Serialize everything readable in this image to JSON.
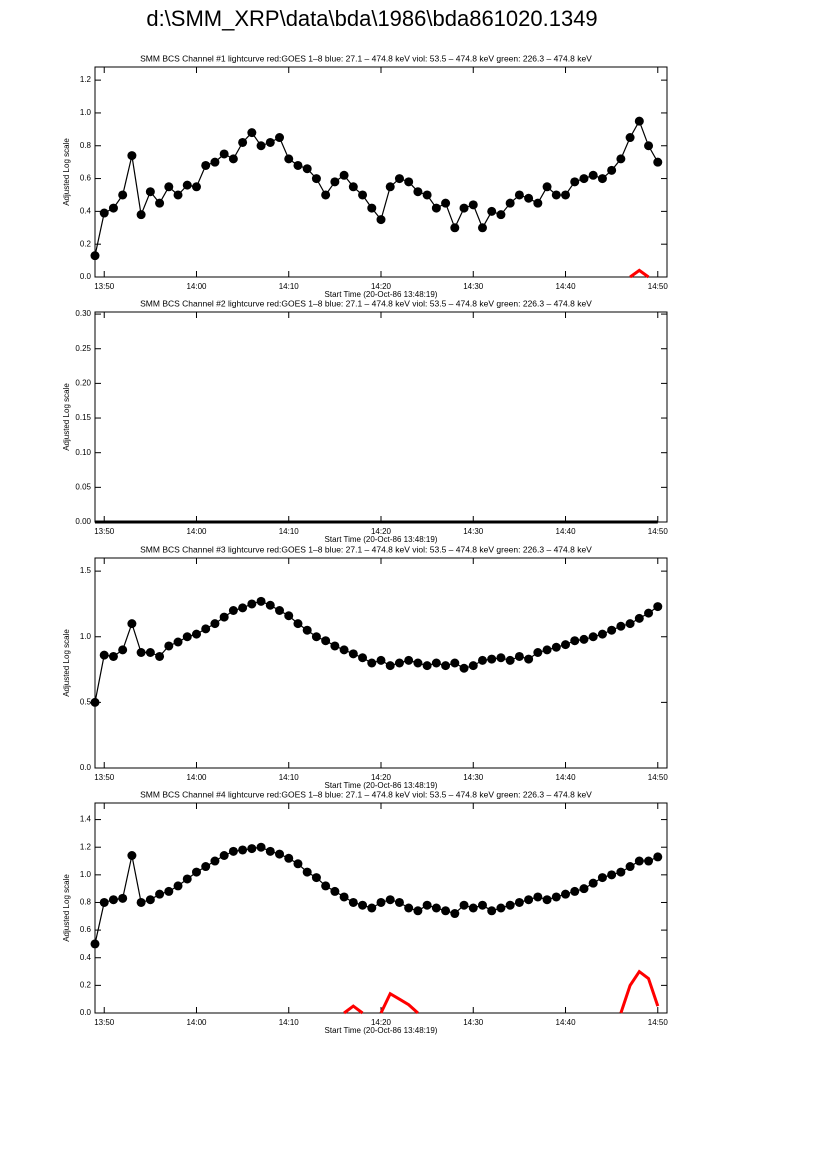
{
  "header": {
    "title": "d:\\SMM_XRP\\data\\bda\\1986\\bda861020.1349"
  },
  "chart_data": [
    {
      "type": "line",
      "title": "SMM BCS Channel #1 lightcurve  red:GOES 1–8  blue: 27.1 – 474.8 keV  viol: 53.5 – 474.8 keV  green: 226.3 – 474.8 keV",
      "x_label": "Start Time (20-Oct-86 13:48:19)",
      "y_label": "Adjusted Log scale",
      "x": [
        "13:49",
        "13:50",
        "13:51",
        "13:52",
        "13:53",
        "13:54",
        "13:55",
        "13:56",
        "13:57",
        "13:58",
        "13:59",
        "14:00",
        "14:01",
        "14:02",
        "14:03",
        "14:04",
        "14:05",
        "14:06",
        "14:07",
        "14:08",
        "14:09",
        "14:10",
        "14:11",
        "14:12",
        "14:13",
        "14:14",
        "14:15",
        "14:16",
        "14:17",
        "14:18",
        "14:19",
        "14:20",
        "14:21",
        "14:22",
        "14:23",
        "14:24",
        "14:25",
        "14:26",
        "14:27",
        "14:28",
        "14:29",
        "14:30",
        "14:31",
        "14:32",
        "14:33",
        "14:34",
        "14:35",
        "14:36",
        "14:37",
        "14:38",
        "14:39",
        "14:40",
        "14:41",
        "14:42",
        "14:43",
        "14:44",
        "14:45",
        "14:46",
        "14:47",
        "14:48",
        "14:49",
        "14:50"
      ],
      "series": [
        {
          "color": "#000000",
          "markers": true,
          "values": [
            0.13,
            0.39,
            0.42,
            0.5,
            0.74,
            0.38,
            0.52,
            0.45,
            0.55,
            0.5,
            0.56,
            0.55,
            0.68,
            0.7,
            0.75,
            0.72,
            0.82,
            0.88,
            0.8,
            0.82,
            0.85,
            0.72,
            0.68,
            0.66,
            0.6,
            0.5,
            0.58,
            0.62,
            0.55,
            0.5,
            0.42,
            0.35,
            0.55,
            0.6,
            0.58,
            0.52,
            0.5,
            0.42,
            0.45,
            0.3,
            0.42,
            0.44,
            0.3,
            0.4,
            0.38,
            0.45,
            0.5,
            0.48,
            0.45,
            0.55,
            0.5,
            0.5,
            0.58,
            0.6,
            0.62,
            0.6,
            0.65,
            0.72,
            0.85,
            0.95,
            0.8,
            0.7
          ]
        },
        {
          "color": "#ff0000",
          "markers": false,
          "values": [
            null,
            null,
            null,
            null,
            null,
            null,
            null,
            null,
            null,
            null,
            null,
            null,
            null,
            null,
            null,
            null,
            null,
            null,
            null,
            null,
            null,
            null,
            null,
            null,
            null,
            null,
            null,
            null,
            null,
            null,
            null,
            null,
            null,
            null,
            null,
            null,
            null,
            null,
            null,
            null,
            null,
            null,
            null,
            null,
            null,
            null,
            null,
            null,
            null,
            null,
            null,
            null,
            null,
            null,
            null,
            null,
            null,
            null,
            0,
            0.04,
            0,
            null
          ]
        }
      ],
      "xlim": [
        "13:49",
        "14:51"
      ],
      "xticks": [
        "13:50",
        "14:00",
        "14:10",
        "14:20",
        "14:30",
        "14:40",
        "14:50"
      ],
      "ylim": [
        0,
        1.28
      ],
      "yticks": [
        {
          "value": 0,
          "label": "0.0"
        },
        {
          "value": 0.2,
          "label": "0.2"
        },
        {
          "value": 0.4,
          "label": "0.4"
        },
        {
          "value": 0.6,
          "label": "0.6"
        },
        {
          "value": 0.8,
          "label": "0.8"
        },
        {
          "value": 1,
          "label": "1.0"
        },
        {
          "value": 1.2,
          "label": "1.2"
        }
      ]
    },
    {
      "type": "line",
      "title": "SMM BCS Channel #2 lightcurve  red:GOES 1–8  blue: 27.1 – 474.8 keV  viol: 53.5 – 474.8 keV  green: 226.3 – 474.8 keV",
      "x_label": "Start Time (20-Oct-86 13:48:19)",
      "y_label": "Adjusted Log scale",
      "x": [
        "13:49",
        "13:50",
        "13:51",
        "13:52",
        "13:53",
        "13:54",
        "13:55",
        "13:56",
        "13:57",
        "13:58",
        "13:59",
        "14:00",
        "14:01",
        "14:02",
        "14:03",
        "14:04",
        "14:05",
        "14:06",
        "14:07",
        "14:08",
        "14:09",
        "14:10",
        "14:11",
        "14:12",
        "14:13",
        "14:14",
        "14:15",
        "14:16",
        "14:17",
        "14:18",
        "14:19",
        "14:20",
        "14:21",
        "14:22",
        "14:23",
        "14:24",
        "14:25",
        "14:26",
        "14:27",
        "14:28",
        "14:29",
        "14:30",
        "14:31",
        "14:32",
        "14:33",
        "14:34",
        "14:35",
        "14:36",
        "14:37",
        "14:38",
        "14:39",
        "14:40",
        "14:41",
        "14:42",
        "14:43",
        "14:44",
        "14:45",
        "14:46",
        "14:47",
        "14:48",
        "14:49",
        "14:50"
      ],
      "series": [
        {
          "color": "#000000",
          "markers": false,
          "values": [
            0,
            0,
            0,
            0,
            0,
            0,
            0,
            0,
            0,
            0,
            0,
            0,
            0,
            0,
            0,
            0,
            0,
            0,
            0,
            0,
            0,
            0,
            0,
            0,
            0,
            0,
            0,
            0,
            0,
            0,
            0,
            0,
            0,
            0,
            0,
            0,
            0,
            0,
            0,
            0,
            0,
            0,
            0,
            0,
            0,
            0,
            0,
            0,
            0,
            0,
            0,
            0,
            0,
            0,
            0,
            0,
            0,
            0,
            0,
            0,
            0,
            0
          ]
        }
      ],
      "xlim": [
        "13:49",
        "14:51"
      ],
      "xticks": [
        "13:50",
        "14:00",
        "14:10",
        "14:20",
        "14:30",
        "14:40",
        "14:50"
      ],
      "ylim": [
        0,
        0.303
      ],
      "yticks": [
        {
          "value": 0,
          "label": "0.00"
        },
        {
          "value": 0.05,
          "label": "0.05"
        },
        {
          "value": 0.1,
          "label": "0.10"
        },
        {
          "value": 0.15,
          "label": "0.15"
        },
        {
          "value": 0.2,
          "label": "0.20"
        },
        {
          "value": 0.25,
          "label": "0.25"
        },
        {
          "value": 0.3,
          "label": "0.30"
        }
      ]
    },
    {
      "type": "line",
      "title": "SMM BCS Channel #3 lightcurve  red:GOES 1–8  blue: 27.1 – 474.8 keV  viol: 53.5 – 474.8 keV  green: 226.3 – 474.8 keV",
      "x_label": "Start Time (20-Oct-86 13:48:19)",
      "y_label": "Adjusted Log scale",
      "x": [
        "13:49",
        "13:50",
        "13:51",
        "13:52",
        "13:53",
        "13:54",
        "13:55",
        "13:56",
        "13:57",
        "13:58",
        "13:59",
        "14:00",
        "14:01",
        "14:02",
        "14:03",
        "14:04",
        "14:05",
        "14:06",
        "14:07",
        "14:08",
        "14:09",
        "14:10",
        "14:11",
        "14:12",
        "14:13",
        "14:14",
        "14:15",
        "14:16",
        "14:17",
        "14:18",
        "14:19",
        "14:20",
        "14:21",
        "14:22",
        "14:23",
        "14:24",
        "14:25",
        "14:26",
        "14:27",
        "14:28",
        "14:29",
        "14:30",
        "14:31",
        "14:32",
        "14:33",
        "14:34",
        "14:35",
        "14:36",
        "14:37",
        "14:38",
        "14:39",
        "14:40",
        "14:41",
        "14:42",
        "14:43",
        "14:44",
        "14:45",
        "14:46",
        "14:47",
        "14:48",
        "14:49",
        "14:50"
      ],
      "series": [
        {
          "color": "#000000",
          "markers": true,
          "values": [
            0.5,
            0.86,
            0.85,
            0.9,
            1.1,
            0.88,
            0.88,
            0.85,
            0.93,
            0.96,
            1,
            1.02,
            1.06,
            1.1,
            1.15,
            1.2,
            1.22,
            1.25,
            1.27,
            1.24,
            1.2,
            1.16,
            1.1,
            1.05,
            1,
            0.97,
            0.93,
            0.9,
            0.87,
            0.84,
            0.8,
            0.82,
            0.78,
            0.8,
            0.82,
            0.8,
            0.78,
            0.8,
            0.78,
            0.8,
            0.76,
            0.78,
            0.82,
            0.83,
            0.84,
            0.82,
            0.85,
            0.83,
            0.88,
            0.9,
            0.92,
            0.94,
            0.97,
            0.98,
            1,
            1.02,
            1.05,
            1.08,
            1.1,
            1.14,
            1.18,
            1.23
          ]
        }
      ],
      "xlim": [
        "13:49",
        "14:51"
      ],
      "xticks": [
        "13:50",
        "14:00",
        "14:10",
        "14:20",
        "14:30",
        "14:40",
        "14:50"
      ],
      "ylim": [
        0,
        1.6
      ],
      "yticks": [
        {
          "value": 0,
          "label": "0.0"
        },
        {
          "value": 0.5,
          "label": "0.5"
        },
        {
          "value": 1,
          "label": "1.0"
        },
        {
          "value": 1.5,
          "label": "1.5"
        }
      ]
    },
    {
      "type": "line",
      "title": "SMM BCS Channel #4 lightcurve  red:GOES 1–8  blue: 27.1 – 474.8 keV  viol: 53.5 – 474.8 keV  green: 226.3 – 474.8 keV",
      "x_label": "Start Time (20-Oct-86 13:48:19)",
      "y_label": "Adjusted Log scale",
      "x": [
        "13:49",
        "13:50",
        "13:51",
        "13:52",
        "13:53",
        "13:54",
        "13:55",
        "13:56",
        "13:57",
        "13:58",
        "13:59",
        "14:00",
        "14:01",
        "14:02",
        "14:03",
        "14:04",
        "14:05",
        "14:06",
        "14:07",
        "14:08",
        "14:09",
        "14:10",
        "14:11",
        "14:12",
        "14:13",
        "14:14",
        "14:15",
        "14:16",
        "14:17",
        "14:18",
        "14:19",
        "14:20",
        "14:21",
        "14:22",
        "14:23",
        "14:24",
        "14:25",
        "14:26",
        "14:27",
        "14:28",
        "14:29",
        "14:30",
        "14:31",
        "14:32",
        "14:33",
        "14:34",
        "14:35",
        "14:36",
        "14:37",
        "14:38",
        "14:39",
        "14:40",
        "14:41",
        "14:42",
        "14:43",
        "14:44",
        "14:45",
        "14:46",
        "14:47",
        "14:48",
        "14:49",
        "14:50"
      ],
      "series": [
        {
          "color": "#000000",
          "markers": true,
          "values": [
            0.5,
            0.8,
            0.82,
            0.83,
            1.14,
            0.8,
            0.82,
            0.86,
            0.88,
            0.92,
            0.97,
            1.02,
            1.06,
            1.1,
            1.14,
            1.17,
            1.18,
            1.19,
            1.2,
            1.17,
            1.15,
            1.12,
            1.08,
            1.02,
            0.98,
            0.92,
            0.88,
            0.84,
            0.8,
            0.78,
            0.76,
            0.8,
            0.82,
            0.8,
            0.76,
            0.74,
            0.78,
            0.76,
            0.74,
            0.72,
            0.78,
            0.76,
            0.78,
            0.74,
            0.76,
            0.78,
            0.8,
            0.82,
            0.84,
            0.82,
            0.84,
            0.86,
            0.88,
            0.9,
            0.94,
            0.98,
            1,
            1.02,
            1.06,
            1.1,
            1.1,
            1.13
          ]
        },
        {
          "color": "#ff0000",
          "markers": false,
          "values": [
            null,
            null,
            null,
            null,
            null,
            null,
            null,
            null,
            null,
            null,
            null,
            null,
            null,
            null,
            null,
            null,
            null,
            null,
            null,
            null,
            null,
            null,
            null,
            null,
            null,
            null,
            null,
            0,
            0.05,
            0,
            null,
            0,
            0.14,
            0.1,
            0.06,
            0,
            null,
            null,
            null,
            null,
            null,
            null,
            null,
            null,
            null,
            null,
            null,
            null,
            null,
            null,
            null,
            null,
            null,
            null,
            null,
            null,
            null,
            0,
            0.2,
            0.3,
            0.25,
            0.05
          ]
        }
      ],
      "xlim": [
        "13:49",
        "14:51"
      ],
      "xticks": [
        "13:50",
        "14:00",
        "14:10",
        "14:20",
        "14:30",
        "14:40",
        "14:50"
      ],
      "ylim": [
        0,
        1.52
      ],
      "yticks": [
        {
          "value": 0,
          "label": "0.0"
        },
        {
          "value": 0.2,
          "label": "0.2"
        },
        {
          "value": 0.4,
          "label": "0.4"
        },
        {
          "value": 0.6,
          "label": "0.6"
        },
        {
          "value": 0.8,
          "label": "0.8"
        },
        {
          "value": 1,
          "label": "1.0"
        },
        {
          "value": 1.2,
          "label": "1.2"
        },
        {
          "value": 1.4,
          "label": "1.4"
        }
      ]
    }
  ]
}
